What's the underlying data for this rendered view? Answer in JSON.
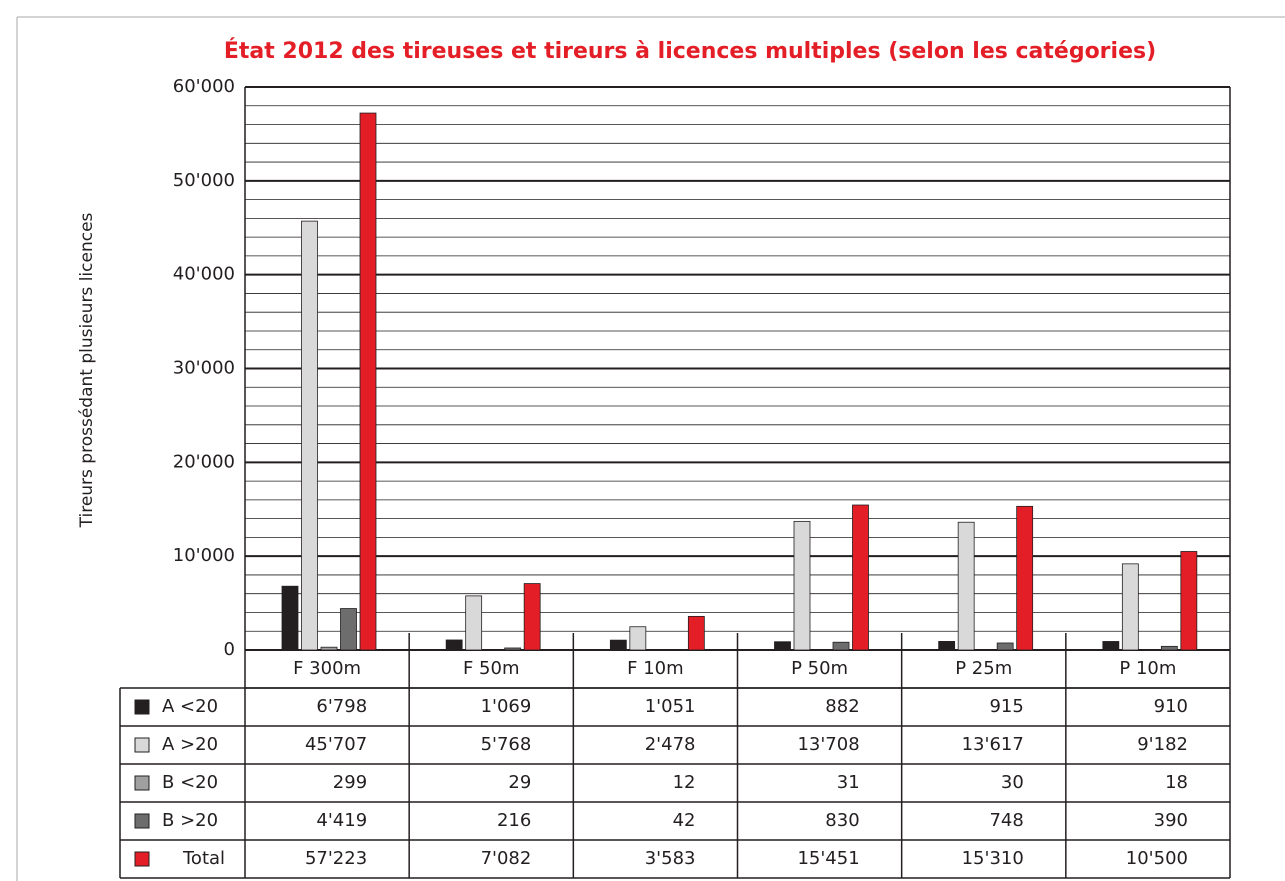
{
  "chart_data": {
    "type": "bar",
    "title": "État 2012 des tireuses et tireurs à licences multiples (selon les catégories)",
    "y_label": "Tireurs prossédant plusieurs licences",
    "categories": [
      "F 300m",
      "F 50m",
      "F 10m",
      "P 50m",
      "P 25m",
      "P 10m"
    ],
    "series": [
      {
        "name": "A <20",
        "color": "#231f20",
        "values": [
          6798,
          1069,
          1051,
          882,
          915,
          910
        ],
        "value_labels": [
          "6'798",
          "1'069",
          "1'051",
          "882",
          "915",
          "910"
        ]
      },
      {
        "name": "A >20",
        "color": "#d9d9d9",
        "values": [
          45707,
          5768,
          2478,
          13708,
          13617,
          9182
        ],
        "value_labels": [
          "45'707",
          "5'768",
          "2'478",
          "13'708",
          "13'617",
          "9'182"
        ]
      },
      {
        "name": "B <20",
        "color": "#a0a0a0",
        "values": [
          299,
          29,
          12,
          31,
          30,
          18
        ],
        "value_labels": [
          "299",
          "29",
          "12",
          "31",
          "30",
          "18"
        ]
      },
      {
        "name": "B >20",
        "color": "#6d6d6d",
        "values": [
          4419,
          216,
          42,
          830,
          748,
          390
        ],
        "value_labels": [
          "4'419",
          "216",
          "42",
          "830",
          "748",
          "390"
        ]
      },
      {
        "name": "Total",
        "color": "#e41e26",
        "values": [
          57223,
          7082,
          3583,
          15451,
          15310,
          10500
        ],
        "value_labels": [
          "57'223",
          "7'082",
          "3'583",
          "15'451",
          "15'310",
          "10'500"
        ]
      }
    ],
    "ylim": [
      0,
      60000
    ],
    "yticks": [
      0,
      {
        "value": 10000,
        "label": "10'000"
      },
      {
        "value": 20000,
        "label": "20'000"
      },
      {
        "value": 30000,
        "label": "30'000"
      },
      {
        "value": 40000,
        "label": "40'000"
      },
      {
        "value": 50000,
        "label": "50'000"
      },
      {
        "value": 60000,
        "label": "60'000"
      }
    ],
    "minor_grid": 2000,
    "grid": true,
    "title_color": "#e41e26"
  }
}
